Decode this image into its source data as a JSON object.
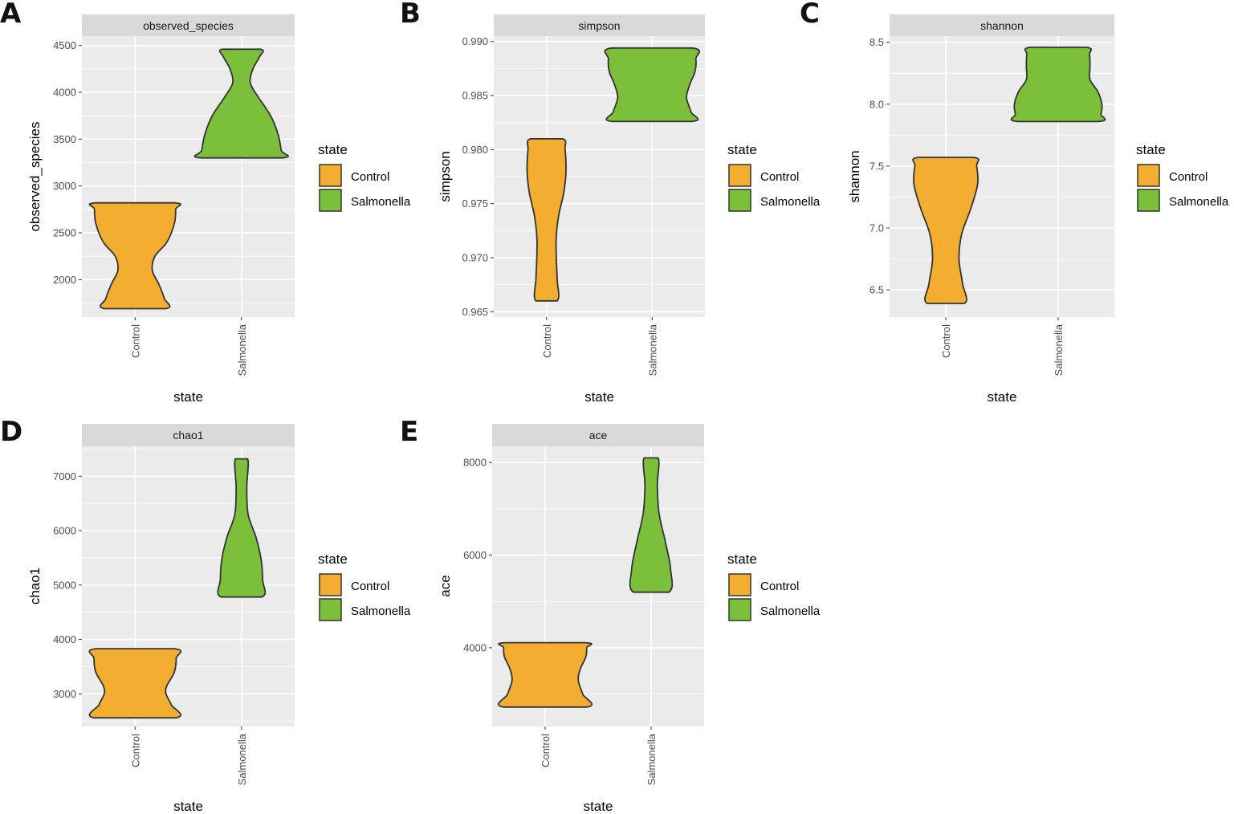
{
  "colors": {
    "Control": "#f3ad31",
    "Salmonella": "#7cbf3a",
    "panel_background": "#ebebeb",
    "strip_background": "#d9d9d9",
    "grid": "#ffffff",
    "outline": "#333333"
  },
  "legend": {
    "title": "state",
    "entries": [
      "Control",
      "Salmonella"
    ]
  },
  "chart_data": [
    {
      "panel": "A",
      "type": "violin",
      "title": "observed_species",
      "xlabel": "state",
      "ylabel": "observed_species",
      "categories": [
        "Control",
        "Salmonella"
      ],
      "ylim": [
        1600,
        4600
      ],
      "yticks": [
        "2000",
        "2500",
        "3000",
        "3500",
        "4000",
        "4500"
      ],
      "grid": true,
      "legend_position": "right",
      "series": [
        {
          "name": "Control",
          "min": 1690,
          "max": 2820,
          "profile": [
            [
              1690,
              0.69
            ],
            [
              1800,
              0.66
            ],
            [
              1950,
              0.54
            ],
            [
              2100,
              0.39
            ],
            [
              2250,
              0.45
            ],
            [
              2400,
              0.72
            ],
            [
              2600,
              0.89
            ],
            [
              2750,
              0.92
            ],
            [
              2820,
              0.89
            ]
          ]
        },
        {
          "name": "Salmonella",
          "min": 3300,
          "max": 4460,
          "profile": [
            [
              3300,
              0.93
            ],
            [
              3380,
              0.9
            ],
            [
              3550,
              0.83
            ],
            [
              3750,
              0.66
            ],
            [
              3950,
              0.38
            ],
            [
              4100,
              0.2
            ],
            [
              4250,
              0.26
            ],
            [
              4380,
              0.41
            ],
            [
              4460,
              0.43
            ]
          ]
        }
      ]
    },
    {
      "panel": "B",
      "type": "violin",
      "title": "simpson",
      "xlabel": "state",
      "ylabel": "simpson",
      "categories": [
        "Control",
        "Salmonella"
      ],
      "ylim": [
        0.9645,
        0.9905
      ],
      "yticks": [
        "0.965",
        "0.970",
        "0.975",
        "0.980",
        "0.985",
        "0.990"
      ],
      "grid": true,
      "legend_position": "right",
      "series": [
        {
          "name": "Control",
          "min": 0.966,
          "max": 0.981,
          "profile": [
            [
              0.966,
              0.24
            ],
            [
              0.968,
              0.24
            ],
            [
              0.97,
              0.22
            ],
            [
              0.972,
              0.22
            ],
            [
              0.974,
              0.28
            ],
            [
              0.976,
              0.39
            ],
            [
              0.978,
              0.44
            ],
            [
              0.98,
              0.42
            ],
            [
              0.981,
              0.36
            ]
          ]
        },
        {
          "name": "Salmonella",
          "min": 0.9826,
          "max": 0.9894,
          "profile": [
            [
              0.9826,
              0.91
            ],
            [
              0.9835,
              0.88
            ],
            [
              0.9848,
              0.78
            ],
            [
              0.986,
              0.85
            ],
            [
              0.9872,
              0.97
            ],
            [
              0.9884,
              0.99
            ],
            [
              0.9894,
              0.91
            ]
          ]
        }
      ]
    },
    {
      "panel": "C",
      "type": "violin",
      "title": "shannon",
      "xlabel": "state",
      "ylabel": "shannon",
      "categories": [
        "Control",
        "Salmonella"
      ],
      "ylim": [
        6.28,
        8.55
      ],
      "yticks": [
        "6.5",
        "7.0",
        "7.5",
        "8.0",
        "8.5"
      ],
      "grid": true,
      "legend_position": "right",
      "series": [
        {
          "name": "Control",
          "min": 6.39,
          "max": 7.57,
          "profile": [
            [
              6.39,
              0.42
            ],
            [
              6.55,
              0.38
            ],
            [
              6.75,
              0.3
            ],
            [
              6.95,
              0.36
            ],
            [
              7.15,
              0.56
            ],
            [
              7.35,
              0.72
            ],
            [
              7.5,
              0.7
            ],
            [
              7.57,
              0.63
            ]
          ]
        },
        {
          "name": "Salmonella",
          "min": 7.86,
          "max": 8.46,
          "profile": [
            [
              7.86,
              0.91
            ],
            [
              7.92,
              0.97
            ],
            [
              8.0,
              0.99
            ],
            [
              8.1,
              0.9
            ],
            [
              8.2,
              0.72
            ],
            [
              8.3,
              0.72
            ],
            [
              8.4,
              0.71
            ],
            [
              8.46,
              0.63
            ]
          ]
        }
      ]
    },
    {
      "panel": "D",
      "type": "violin",
      "title": "chao1",
      "xlabel": "state",
      "ylabel": "chao1",
      "categories": [
        "Control",
        "Salmonella"
      ],
      "ylim": [
        2400,
        7550
      ],
      "yticks": [
        "3000",
        "4000",
        "5000",
        "6000",
        "7000"
      ],
      "grid": true,
      "legend_position": "right",
      "series": [
        {
          "name": "Control",
          "min": 2560,
          "max": 3830,
          "profile": [
            [
              2560,
              0.92
            ],
            [
              2800,
              0.82
            ],
            [
              3000,
              0.7
            ],
            [
              3150,
              0.72
            ],
            [
              3400,
              0.89
            ],
            [
              3650,
              0.93
            ],
            [
              3830,
              0.89
            ]
          ]
        },
        {
          "name": "Salmonella",
          "min": 4780,
          "max": 7320,
          "profile": [
            [
              4780,
              0.46
            ],
            [
              5100,
              0.48
            ],
            [
              5500,
              0.44
            ],
            [
              5900,
              0.32
            ],
            [
              6300,
              0.15
            ],
            [
              6800,
              0.12
            ],
            [
              7320,
              0.14
            ]
          ]
        }
      ]
    },
    {
      "panel": "E",
      "type": "violin",
      "title": "ace",
      "xlabel": "state",
      "ylabel": "ace",
      "categories": [
        "Control",
        "Salmonella"
      ],
      "ylim": [
        2300,
        8350
      ],
      "yticks": [
        "4000",
        "6000",
        "8000"
      ],
      "grid": true,
      "legend_position": "right",
      "series": [
        {
          "name": "Control",
          "min": 2720,
          "max": 4110,
          "profile": [
            [
              2720,
              0.94
            ],
            [
              3000,
              0.85
            ],
            [
              3300,
              0.75
            ],
            [
              3550,
              0.8
            ],
            [
              3800,
              0.92
            ],
            [
              4000,
              0.94
            ],
            [
              4110,
              0.91
            ]
          ]
        },
        {
          "name": "Salmonella",
          "min": 5200,
          "max": 8100,
          "profile": [
            [
              5200,
              0.4
            ],
            [
              5700,
              0.44
            ],
            [
              6300,
              0.32
            ],
            [
              6900,
              0.18
            ],
            [
              7500,
              0.14
            ],
            [
              8100,
              0.16
            ]
          ]
        }
      ]
    }
  ]
}
